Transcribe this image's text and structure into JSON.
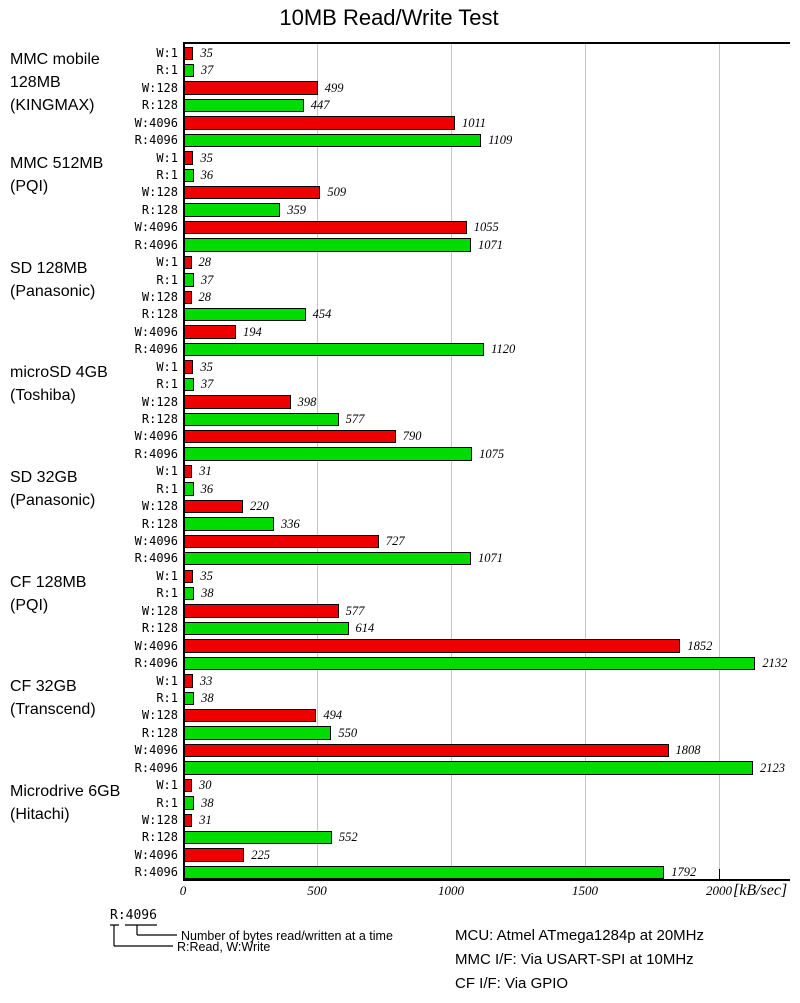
{
  "title": "10MB Read/Write Test",
  "chart_data": {
    "type": "bar",
    "orientation": "horizontal",
    "title": "10MB Read/Write Test",
    "x_unit": "[kB/sec]",
    "x_ticks": [
      0,
      500,
      1000,
      1500,
      2000
    ],
    "xlim": [
      0,
      2265
    ],
    "grid": true,
    "legend_position": "none",
    "rows": [
      {
        "label": "W:1",
        "series": "write"
      },
      {
        "label": "R:1",
        "series": "read"
      },
      {
        "label": "W:128",
        "series": "write"
      },
      {
        "label": "R:128",
        "series": "read"
      },
      {
        "label": "W:4096",
        "series": "write"
      },
      {
        "label": "R:4096",
        "series": "read"
      }
    ],
    "colors": {
      "write": "#ee0000",
      "read": "#00dc00",
      "gridline": "#c6c6c6"
    },
    "groups": [
      {
        "label_lines": [
          "MMC mobile",
          "128MB",
          "(KINGMAX)"
        ],
        "values": [
          35,
          37,
          499,
          447,
          1011,
          1109
        ]
      },
      {
        "label_lines": [
          "MMC 512MB",
          "(PQI)"
        ],
        "values": [
          35,
          36,
          509,
          359,
          1055,
          1071
        ]
      },
      {
        "label_lines": [
          "SD 128MB",
          "(Panasonic)"
        ],
        "values": [
          28,
          37,
          28,
          454,
          194,
          1120
        ]
      },
      {
        "label_lines": [
          "microSD 4GB",
          "(Toshiba)"
        ],
        "values": [
          35,
          37,
          398,
          577,
          790,
          1075
        ]
      },
      {
        "label_lines": [
          "SD 32GB",
          "(Panasonic)"
        ],
        "values": [
          31,
          36,
          220,
          336,
          727,
          1071
        ]
      },
      {
        "label_lines": [
          "CF 128MB",
          "(PQI)"
        ],
        "values": [
          35,
          38,
          577,
          614,
          1852,
          2132
        ]
      },
      {
        "label_lines": [
          "CF 32GB",
          "(Transcend)"
        ],
        "values": [
          33,
          38,
          494,
          550,
          1808,
          2123
        ]
      },
      {
        "label_lines": [
          "Microdrive 6GB",
          "(Hitachi)"
        ],
        "values": [
          30,
          38,
          31,
          552,
          225,
          1792
        ]
      }
    ]
  },
  "footer": {
    "legend_sample": "R:4096",
    "legend_line1": "Number of bytes read/written at a time",
    "legend_line2": "R:Read, W:Write",
    "notes": [
      "MCU: Atmel ATmega1284p at 20MHz",
      "MMC I/F: Via USART-SPI at 10MHz",
      "CF I/F: Via GPIO"
    ]
  }
}
